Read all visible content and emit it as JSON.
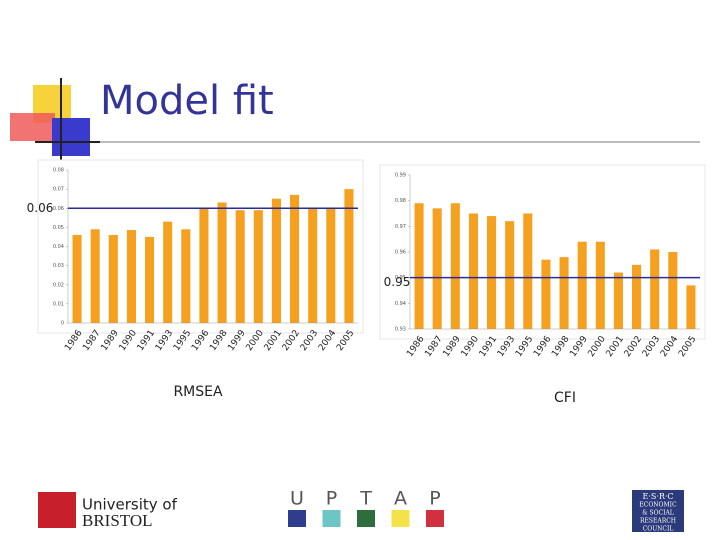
{
  "title": "Model fit",
  "chart_data": [
    {
      "type": "bar",
      "x_label": "RMSEA",
      "color": "#f5a01e",
      "categories": [
        "1986",
        "1987",
        "1989",
        "1990",
        "1991",
        "1993",
        "1995",
        "1996",
        "1998",
        "1999",
        "2000",
        "2001",
        "2002",
        "2003",
        "2004",
        "2005"
      ],
      "values": [
        0.046,
        0.049,
        0.046,
        0.0486,
        0.045,
        0.053,
        0.049,
        0.06,
        0.063,
        0.059,
        0.059,
        0.065,
        0.067,
        0.06,
        0.06,
        0.07
      ],
      "ylim": [
        0,
        0.08
      ],
      "yticks": [
        0,
        0.01,
        0.02,
        0.03,
        0.04,
        0.05,
        0.06,
        0.07,
        0.08
      ],
      "reference_line": 0.06,
      "reference_color": "#2a2a9a"
    },
    {
      "type": "bar",
      "x_label": "CFI",
      "color": "#f5a01e",
      "categories": [
        "1986",
        "1987",
        "1989",
        "1990",
        "1991",
        "1993",
        "1995",
        "1996",
        "1998",
        "1999",
        "2000",
        "2001",
        "2002",
        "2003",
        "2004",
        "2005"
      ],
      "values": [
        0.979,
        0.977,
        0.979,
        0.975,
        0.974,
        0.972,
        0.975,
        0.957,
        0.958,
        0.964,
        0.964,
        0.952,
        0.955,
        0.961,
        0.96,
        0.947
      ],
      "ylim": [
        0.93,
        0.99
      ],
      "yticks": [
        0.93,
        0.94,
        0.95,
        0.96,
        0.97,
        0.98,
        0.99
      ],
      "reference_line": 0.95,
      "reference_color": "#2a2a9a"
    }
  ],
  "footer": {
    "bristol": [
      "University of",
      "BRISTOL"
    ],
    "uptap": [
      "U",
      "P",
      "T",
      "A",
      "P"
    ],
    "esrc": [
      "E·S·R·C",
      "ECONOMIC",
      "& SOCIAL",
      "RESEARCH",
      "COUNCIL"
    ]
  }
}
